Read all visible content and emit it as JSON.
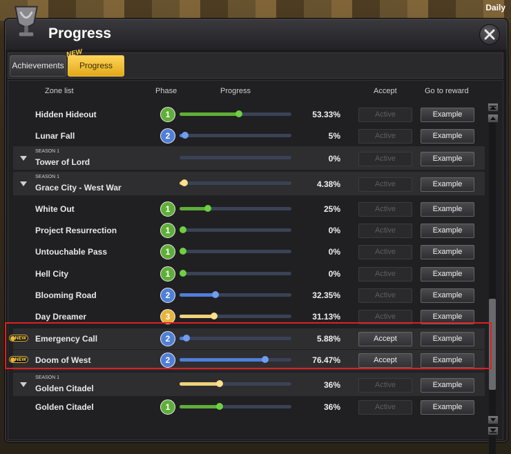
{
  "top_right_label": "Daily",
  "window": {
    "title": "Progress"
  },
  "tabs": [
    {
      "label": "Achievements",
      "active": false
    },
    {
      "label": "Progress",
      "active": true,
      "badge": "NEW"
    }
  ],
  "columns": [
    "Zone list",
    "Phase",
    "Progress",
    "Accept",
    "Go to reward"
  ],
  "colors": {
    "phase1": "#5fae38",
    "phase2": "#4f7fd8",
    "phase3": "#e8b43a",
    "highlight_border": "#e02020"
  },
  "icons": {
    "title": "trophy-cup-icon",
    "close": "close-icon",
    "expand": "triangle-down-icon",
    "new": "new-badge-icon",
    "scroll_up": "scroll-up-icon",
    "scroll_down": "scroll-down-icon"
  },
  "rows": [
    {
      "type": "zone",
      "name": "Hidden Hideout",
      "phase": "1",
      "progress": 53.33,
      "percent": "53.33%",
      "accept": "Active",
      "reward": "Example"
    },
    {
      "type": "zone",
      "name": "Lunar Fall",
      "phase": "2",
      "progress": 5,
      "percent": "5%",
      "accept": "Active",
      "reward": "Example"
    },
    {
      "type": "season",
      "season": "SEASON 1",
      "name": "Tower of Lord",
      "progress": 0,
      "percent": "0%",
      "accept": "Active",
      "reward": "Example"
    },
    {
      "type": "season",
      "season": "SEASON 1",
      "name": "Grace City - West War",
      "progress": 4.38,
      "percent": "4.38%",
      "accept": "Active",
      "reward": "Example"
    },
    {
      "type": "zone",
      "name": "White Out",
      "phase": "1",
      "progress": 25,
      "percent": "25%",
      "accept": "Active",
      "reward": "Example"
    },
    {
      "type": "zone",
      "name": "Project Resurrection",
      "phase": "1",
      "progress": 0,
      "percent": "0%",
      "accept": "Active",
      "reward": "Example"
    },
    {
      "type": "zone",
      "name": "Untouchable Pass",
      "phase": "1",
      "progress": 0,
      "percent": "0%",
      "accept": "Active",
      "reward": "Example"
    },
    {
      "type": "zone",
      "name": "Hell City",
      "phase": "1",
      "progress": 0,
      "percent": "0%",
      "accept": "Active",
      "reward": "Example"
    },
    {
      "type": "zone",
      "name": "Blooming Road",
      "phase": "2",
      "progress": 32.35,
      "percent": "32.35%",
      "accept": "Active",
      "reward": "Example"
    },
    {
      "type": "zone",
      "name": "Day Dreamer",
      "phase": "3",
      "progress": 31.13,
      "percent": "31.13%",
      "accept": "Active",
      "reward": "Example"
    },
    {
      "type": "zone",
      "name": "Emergency Call",
      "phase": "2",
      "progress": 5.88,
      "percent": "5.88%",
      "accept": "Accept",
      "reward": "Example",
      "new_badge": "NEW"
    },
    {
      "type": "zone",
      "name": "Doom of West",
      "phase": "2",
      "progress": 76.47,
      "percent": "76.47%",
      "accept": "Accept",
      "reward": "Example",
      "new_badge": "NEW"
    },
    {
      "type": "season",
      "season": "SEASON 1",
      "name": "Golden Citadel",
      "progress": 36,
      "percent": "36%",
      "accept": "Active",
      "reward": "Example"
    },
    {
      "type": "zone",
      "name": "Golden Citadel",
      "phase": "1",
      "progress": 36,
      "percent": "36%",
      "accept": "Active",
      "reward": "Example"
    }
  ],
  "scroll_position": 0.62
}
